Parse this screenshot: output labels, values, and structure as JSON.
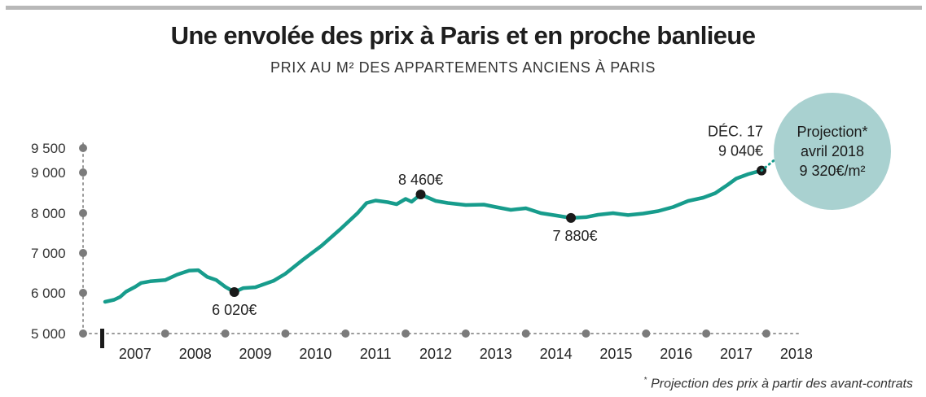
{
  "title": "Une envolée des prix à Paris et en proche banlieue",
  "subtitle": "PRIX AU M² DES APPARTEMENTS ANCIENS À PARIS",
  "footnote_mark": "*",
  "footnote_text": "Projection des prix à partir des avant-contrats",
  "projection": {
    "line1": "Projection*",
    "line2": "avril 2018",
    "line3": "9 320€/m²",
    "value": 9320,
    "date": 2018.25,
    "bubble_color": "#a9d1d0"
  },
  "colors": {
    "line": "#179c8c",
    "axis_dot": "#7b7b7b",
    "marker": "#1a1a1a"
  },
  "chart_data": {
    "type": "line",
    "title": "Une envolée des prix à Paris et en proche banlieue",
    "subtitle": "PRIX AU M² DES APPARTEMENTS ANCIENS À PARIS",
    "xlabel": "",
    "ylabel": "",
    "x_ticks": [
      "2007",
      "2008",
      "2009",
      "2010",
      "2011",
      "2012",
      "2013",
      "2014",
      "2015",
      "2016",
      "2017",
      "2018"
    ],
    "y_ticks": [
      "5 000",
      "6 000",
      "7 000",
      "8 000",
      "9 000",
      "9 500"
    ],
    "y_tick_values": [
      5000,
      6000,
      7000,
      8000,
      9000,
      9500
    ],
    "y_scale": "broken: 5 000 to 9 000 in 1 000 steps, then 9 500",
    "xlim": [
      2007,
      2018.8
    ],
    "ylim": [
      5000,
      9500
    ],
    "grid": false,
    "series": [
      {
        "x": [
          2007.0,
          2007.15,
          2007.25,
          2007.35,
          2007.5,
          2007.6,
          2007.75,
          2008.0,
          2008.2,
          2008.4,
          2008.55,
          2008.7,
          2008.85,
          2009.0,
          2009.15,
          2009.3,
          2009.5,
          2009.8,
          2010.0,
          2010.3,
          2010.6,
          2010.9,
          2011.2,
          2011.35,
          2011.5,
          2011.7,
          2011.85,
          2012.0,
          2012.1,
          2012.25,
          2012.5,
          2012.7,
          2013.0,
          2013.3,
          2013.5,
          2013.75,
          2014.0,
          2014.25,
          2014.5,
          2014.75,
          2015.0,
          2015.2,
          2015.45,
          2015.7,
          2015.95,
          2016.2,
          2016.45,
          2016.7,
          2016.95,
          2017.15,
          2017.35,
          2017.5,
          2017.7,
          2017.92
        ],
        "values": [
          5780,
          5830,
          5900,
          6030,
          6150,
          6250,
          6290,
          6320,
          6460,
          6560,
          6570,
          6400,
          6320,
          6150,
          6020,
          6120,
          6140,
          6300,
          6480,
          6840,
          7180,
          7580,
          8000,
          8250,
          8310,
          8270,
          8220,
          8350,
          8280,
          8460,
          8300,
          8250,
          8200,
          8210,
          8150,
          8080,
          8120,
          8000,
          7940,
          7880,
          7900,
          7960,
          8000,
          7950,
          7990,
          8050,
          8150,
          8300,
          8380,
          8490,
          8690,
          8850,
          8960,
          9040
        ]
      }
    ],
    "annotations": [
      {
        "label": "6 020€",
        "x": 2009.15,
        "value": 6020
      },
      {
        "label": "8 460€",
        "x": 2012.25,
        "value": 8460
      },
      {
        "label": "7 880€",
        "x": 2014.75,
        "value": 7880
      },
      {
        "label_top": "DÉC. 17",
        "label": "9 040€",
        "x": 2017.92,
        "value": 9040
      }
    ]
  }
}
